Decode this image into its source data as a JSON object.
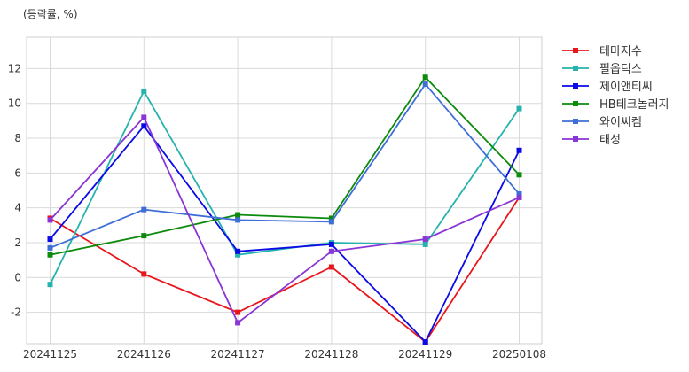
{
  "chart_data": {
    "type": "line",
    "unit_label": "(등락률, %)",
    "categories": [
      "20241125",
      "20241126",
      "20241127",
      "20241128",
      "20241129",
      "20250108"
    ],
    "ylim": [
      -3.8,
      13.8
    ],
    "yticks": [
      -2,
      0,
      2,
      4,
      6,
      8,
      10,
      12
    ],
    "grid": true,
    "legend_position": "right",
    "series": [
      {
        "name": "테마지수",
        "color": "#e8161b",
        "values": [
          3.4,
          0.2,
          -2.0,
          0.6,
          -3.7,
          4.6
        ]
      },
      {
        "name": "필옵틱스",
        "color": "#26b3ad",
        "values": [
          -0.4,
          10.7,
          1.3,
          2.0,
          1.9,
          9.7
        ]
      },
      {
        "name": "제이앤티씨",
        "color": "#0a0ae6",
        "values": [
          2.2,
          8.7,
          1.5,
          1.9,
          -3.7,
          7.3
        ]
      },
      {
        "name": "HB테크놀러지",
        "color": "#0c8a0c",
        "values": [
          1.3,
          2.4,
          3.6,
          3.4,
          11.5,
          5.9
        ]
      },
      {
        "name": "와이씨켐",
        "color": "#3f6fd6",
        "values": [
          1.7,
          3.9,
          3.3,
          3.2,
          11.1,
          4.8
        ]
      },
      {
        "name": "태성",
        "color": "#8a35d6",
        "values": [
          3.3,
          9.2,
          -2.6,
          1.5,
          2.2,
          4.6
        ]
      }
    ]
  }
}
